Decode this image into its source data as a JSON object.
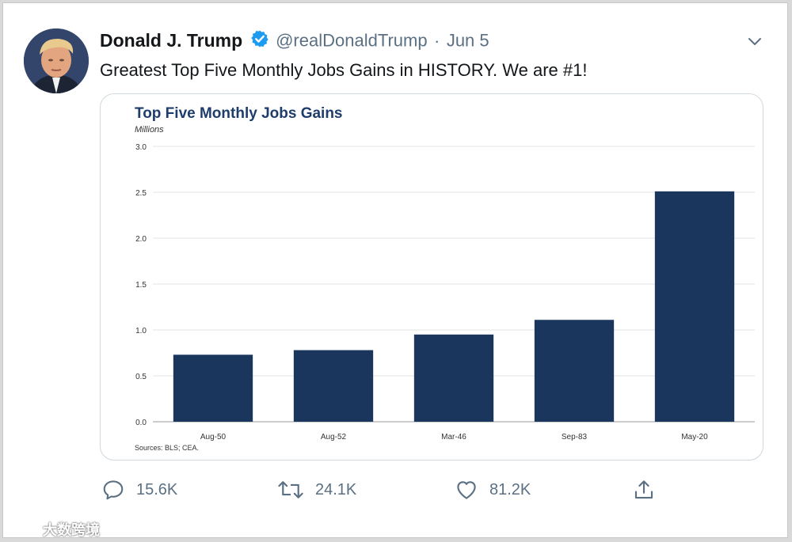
{
  "tweet": {
    "display_name": "Donald J. Trump",
    "handle": "@realDonaldTrump",
    "separator": "·",
    "date": "Jun 5",
    "text": "Greatest Top Five Monthly Jobs Gains in HISTORY. We are #1!",
    "verified_color": "#1d9bf0"
  },
  "actions": {
    "reply_count": "15.6K",
    "retweet_count": "24.1K",
    "like_count": "81.2K"
  },
  "card": {
    "source": "Sources: BLS; CEA."
  },
  "chart_data": {
    "type": "bar",
    "title": "Top Five Monthly Jobs Gains",
    "ylabel": "Millions",
    "categories": [
      "Aug-50",
      "Aug-52",
      "Mar-46",
      "Sep-83",
      "May-20"
    ],
    "values": [
      0.73,
      0.78,
      0.95,
      1.11,
      2.51
    ],
    "ylim": [
      0,
      3.0
    ],
    "yticks": [
      "0.0",
      "0.5",
      "1.0",
      "1.5",
      "2.0",
      "2.5",
      "3.0"
    ],
    "grid": true,
    "bar_color": "#1a365d"
  },
  "watermark": {
    "text": "大数跨境"
  }
}
